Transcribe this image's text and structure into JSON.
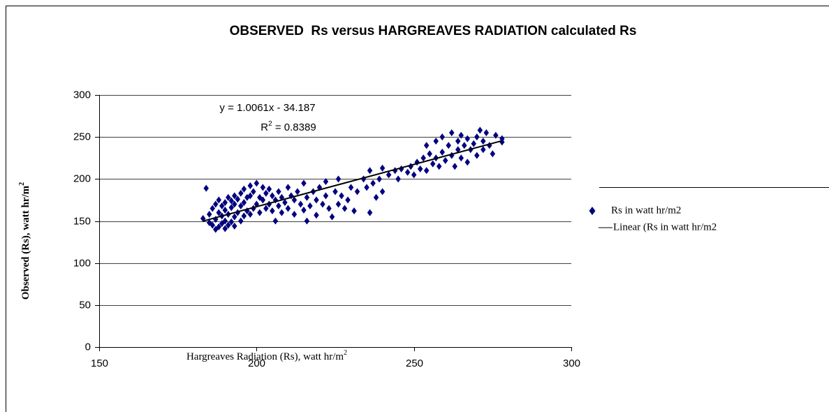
{
  "chart_data": {
    "type": "scatter",
    "title": "OBSERVED  Rs versus HARGREAVES RADIATION calculated Rs",
    "x_label": [
      "Hargreaves Radiation (Rs), watt hr/m",
      "2"
    ],
    "y_label": [
      "Observed (Rs), watt hr/m",
      "2"
    ],
    "xlim": [
      150,
      300
    ],
    "xticks": [
      150,
      200,
      250,
      300
    ],
    "ylim": [
      0,
      300
    ],
    "yticks": [
      0,
      50,
      100,
      150,
      200,
      250,
      300
    ],
    "grid": true,
    "legend": "right",
    "x": [
      183,
      184,
      185,
      185,
      186,
      186,
      187,
      187,
      187,
      188,
      188,
      188,
      189,
      189,
      189,
      190,
      190,
      190,
      190,
      191,
      191,
      191,
      192,
      192,
      192,
      193,
      193,
      193,
      193,
      194,
      194,
      195,
      195,
      195,
      196,
      196,
      196,
      197,
      197,
      198,
      198,
      198,
      199,
      199,
      200,
      200,
      201,
      201,
      202,
      202,
      203,
      203,
      204,
      204,
      205,
      205,
      206,
      206,
      207,
      207,
      208,
      208,
      209,
      210,
      210,
      211,
      212,
      212,
      213,
      214,
      215,
      215,
      216,
      216,
      217,
      218,
      219,
      219,
      220,
      221,
      222,
      222,
      223,
      224,
      225,
      226,
      226,
      227,
      228,
      229,
      230,
      231,
      232,
      234,
      235,
      236,
      236,
      237,
      238,
      239,
      240,
      240,
      242,
      244,
      245,
      246,
      248,
      249,
      250,
      251,
      252,
      253,
      254,
      254,
      255,
      256,
      257,
      257,
      258,
      259,
      259,
      260,
      261,
      262,
      262,
      263,
      264,
      264,
      265,
      265,
      266,
      267,
      267,
      268,
      269,
      270,
      270,
      271,
      272,
      272,
      273,
      274,
      275,
      276,
      278,
      278
    ],
    "series": [
      {
        "name": "Rs in watt hr/m2",
        "color": "#000080",
        "values": [
          153,
          189,
          148,
          158,
          145,
          165,
          140,
          152,
          170,
          143,
          160,
          175,
          147,
          156,
          168,
          141,
          150,
          163,
          172,
          145,
          158,
          178,
          149,
          166,
          174,
          144,
          155,
          170,
          180,
          160,
          176,
          150,
          168,
          183,
          156,
          172,
          188,
          162,
          178,
          158,
          180,
          192,
          165,
          185,
          170,
          195,
          160,
          178,
          175,
          190,
          165,
          183,
          170,
          188,
          162,
          180,
          150,
          175,
          185,
          168,
          160,
          178,
          172,
          190,
          165,
          180,
          158,
          175,
          185,
          170,
          163,
          195,
          150,
          178,
          168,
          185,
          157,
          175,
          190,
          170,
          180,
          197,
          165,
          155,
          185,
          170,
          200,
          180,
          165,
          175,
          190,
          162,
          185,
          200,
          190,
          160,
          210,
          195,
          178,
          200,
          185,
          213,
          205,
          210,
          200,
          212,
          208,
          215,
          205,
          220,
          212,
          225,
          240,
          210,
          230,
          218,
          245,
          225,
          215,
          250,
          232,
          222,
          240,
          228,
          255,
          215,
          245,
          235,
          252,
          225,
          240,
          248,
          220,
          235,
          242,
          250,
          228,
          258,
          245,
          235,
          255,
          240,
          230,
          252,
          248,
          244
        ]
      }
    ],
    "trendline": {
      "name": "Linear (Rs in watt hr/m2",
      "color": "#000000",
      "slope": 1.0061,
      "intercept": -34.187,
      "x_range": [
        183,
        278
      ],
      "equation": "y = 1.0061x - 34.187",
      "r_squared": [
        "R",
        "2",
        " = 0.8389"
      ]
    }
  }
}
